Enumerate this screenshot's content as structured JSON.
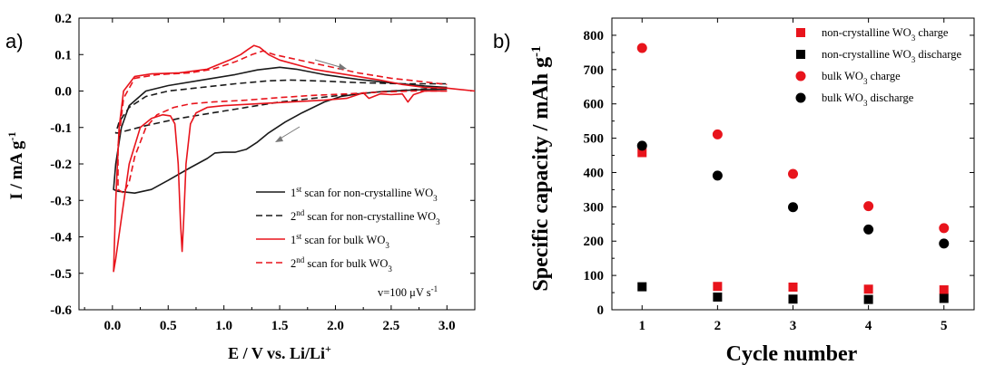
{
  "chart_data": [
    {
      "type": "line",
      "panel_label": "a)",
      "xlabel": "E / V vs. Li/Li",
      "xlabel_sup": "+",
      "ylabel": "I / mA g",
      "ylabel_sup": "-1",
      "xlim": [
        -0.3,
        3.25
      ],
      "ylim": [
        -0.6,
        0.2
      ],
      "xticks": [
        0.0,
        0.5,
        1.0,
        1.5,
        2.0,
        2.5,
        3.0
      ],
      "xtick_labels": [
        "0.0",
        "0.5",
        "1.0",
        "1.5",
        "2.0",
        "2.5",
        "3.0"
      ],
      "yticks": [
        -0.6,
        -0.5,
        -0.4,
        -0.3,
        -0.2,
        -0.1,
        0.0,
        0.1,
        0.2
      ],
      "ytick_labels": [
        "-0.6",
        "-0.5",
        "-0.4",
        "-0.3",
        "-0.2",
        "-0.1",
        "0.0",
        "0.1",
        "0.2"
      ],
      "annotation": "v=100 μV s",
      "annotation_sup": "-1",
      "legend_position": "bottom-right",
      "colors": {
        "noncrystalline": "#1a1a1a",
        "bulk": "#e8141c"
      },
      "series": [
        {
          "name": "1st scan for non-crystalline WO3",
          "legend": {
            "pre": "1",
            "sup": "st",
            "mid": " scan for non-crystalline WO",
            "sub": "3"
          },
          "color": "#1a1a1a",
          "dash": "solid",
          "points": [
            [
              3.0,
              0.005
            ],
            [
              2.7,
              0.003
            ],
            [
              2.4,
              -0.002
            ],
            [
              2.2,
              -0.008
            ],
            [
              2.05,
              -0.015
            ],
            [
              1.9,
              -0.03
            ],
            [
              1.7,
              -0.06
            ],
            [
              1.55,
              -0.085
            ],
            [
              1.4,
              -0.115
            ],
            [
              1.3,
              -0.14
            ],
            [
              1.2,
              -0.16
            ],
            [
              1.1,
              -0.168
            ],
            [
              1.0,
              -0.168
            ],
            [
              0.92,
              -0.17
            ],
            [
              0.85,
              -0.185
            ],
            [
              0.7,
              -0.21
            ],
            [
              0.5,
              -0.245
            ],
            [
              0.35,
              -0.27
            ],
            [
              0.2,
              -0.28
            ],
            [
              0.05,
              -0.275
            ],
            [
              0.01,
              -0.27
            ],
            [
              0.03,
              -0.2
            ],
            [
              0.08,
              -0.1
            ],
            [
              0.15,
              -0.04
            ],
            [
              0.3,
              0.0
            ],
            [
              0.5,
              0.015
            ],
            [
              0.8,
              0.03
            ],
            [
              1.1,
              0.045
            ],
            [
              1.3,
              0.058
            ],
            [
              1.5,
              0.065
            ],
            [
              1.65,
              0.06
            ],
            [
              1.9,
              0.045
            ],
            [
              2.2,
              0.032
            ],
            [
              2.5,
              0.022
            ],
            [
              2.8,
              0.014
            ],
            [
              3.0,
              0.01
            ]
          ]
        },
        {
          "name": "2nd scan for non-crystalline WO3",
          "legend": {
            "pre": "2",
            "sup": "nd",
            "mid": " scan for non-crystalline WO",
            "sub": "3"
          },
          "color": "#1a1a1a",
          "dash": "dashed",
          "points": [
            [
              3.0,
              0.01
            ],
            [
              2.7,
              0.004
            ],
            [
              2.4,
              -0.002
            ],
            [
              2.1,
              -0.01
            ],
            [
              1.8,
              -0.02
            ],
            [
              1.5,
              -0.03
            ],
            [
              1.2,
              -0.045
            ],
            [
              0.9,
              -0.06
            ],
            [
              0.6,
              -0.075
            ],
            [
              0.3,
              -0.095
            ],
            [
              0.05,
              -0.115
            ],
            [
              0.03,
              -0.115
            ],
            [
              0.06,
              -0.085
            ],
            [
              0.15,
              -0.045
            ],
            [
              0.3,
              -0.015
            ],
            [
              0.5,
              0.0
            ],
            [
              0.8,
              0.01
            ],
            [
              1.1,
              0.02
            ],
            [
              1.4,
              0.028
            ],
            [
              1.6,
              0.03
            ],
            [
              1.9,
              0.027
            ],
            [
              2.2,
              0.023
            ],
            [
              2.6,
              0.02
            ],
            [
              3.0,
              0.02
            ]
          ]
        },
        {
          "name": "1st scan for bulk WO3",
          "legend": {
            "pre": "1",
            "sup": "st",
            "mid": " scan for bulk WO",
            "sub": "3"
          },
          "color": "#e8141c",
          "dash": "solid",
          "points": [
            [
              3.0,
              0.0
            ],
            [
              2.8,
              0.0
            ],
            [
              2.7,
              -0.01
            ],
            [
              2.65,
              -0.03
            ],
            [
              2.6,
              -0.008
            ],
            [
              2.5,
              -0.01
            ],
            [
              2.4,
              -0.008
            ],
            [
              2.3,
              -0.02
            ],
            [
              2.25,
              -0.005
            ],
            [
              2.1,
              -0.02
            ],
            [
              1.9,
              -0.025
            ],
            [
              1.6,
              -0.03
            ],
            [
              1.3,
              -0.035
            ],
            [
              1.0,
              -0.04
            ],
            [
              0.85,
              -0.045
            ],
            [
              0.75,
              -0.06
            ],
            [
              0.7,
              -0.09
            ],
            [
              0.66,
              -0.2
            ],
            [
              0.64,
              -0.35
            ],
            [
              0.625,
              -0.44
            ],
            [
              0.61,
              -0.36
            ],
            [
              0.59,
              -0.2
            ],
            [
              0.56,
              -0.09
            ],
            [
              0.52,
              -0.068
            ],
            [
              0.45,
              -0.065
            ],
            [
              0.35,
              -0.075
            ],
            [
              0.25,
              -0.1
            ],
            [
              0.15,
              -0.2
            ],
            [
              0.08,
              -0.35
            ],
            [
              0.03,
              -0.46
            ],
            [
              0.01,
              -0.495
            ],
            [
              0.03,
              -0.3
            ],
            [
              0.06,
              -0.1
            ],
            [
              0.1,
              0.0
            ],
            [
              0.2,
              0.04
            ],
            [
              0.35,
              0.047
            ],
            [
              0.6,
              0.05
            ],
            [
              0.85,
              0.06
            ],
            [
              1.05,
              0.085
            ],
            [
              1.15,
              0.1
            ],
            [
              1.22,
              0.115
            ],
            [
              1.27,
              0.125
            ],
            [
              1.32,
              0.12
            ],
            [
              1.4,
              0.1
            ],
            [
              1.5,
              0.085
            ],
            [
              1.8,
              0.06
            ],
            [
              2.1,
              0.045
            ],
            [
              2.4,
              0.03
            ],
            [
              2.6,
              0.018
            ],
            [
              2.8,
              0.01
            ],
            [
              3.0,
              0.008
            ],
            [
              3.25,
              0.0
            ]
          ]
        },
        {
          "name": "2nd scan for bulk WO3",
          "legend": {
            "pre": "2",
            "sup": "nd",
            "mid": " scan for bulk WO",
            "sub": "3"
          },
          "color": "#e8141c",
          "dash": "dashed",
          "points": [
            [
              3.0,
              0.0
            ],
            [
              2.7,
              0.0
            ],
            [
              2.4,
              -0.003
            ],
            [
              2.1,
              -0.008
            ],
            [
              1.8,
              -0.012
            ],
            [
              1.5,
              -0.018
            ],
            [
              1.2,
              -0.025
            ],
            [
              0.9,
              -0.03
            ],
            [
              0.7,
              -0.035
            ],
            [
              0.55,
              -0.045
            ],
            [
              0.4,
              -0.065
            ],
            [
              0.3,
              -0.1
            ],
            [
              0.2,
              -0.18
            ],
            [
              0.15,
              -0.25
            ],
            [
              0.1,
              -0.28
            ],
            [
              0.05,
              -0.27
            ],
            [
              0.05,
              -0.15
            ],
            [
              0.1,
              -0.02
            ],
            [
              0.2,
              0.035
            ],
            [
              0.4,
              0.045
            ],
            [
              0.7,
              0.05
            ],
            [
              0.9,
              0.06
            ],
            [
              1.1,
              0.08
            ],
            [
              1.25,
              0.1
            ],
            [
              1.35,
              0.11
            ],
            [
              1.45,
              0.1
            ],
            [
              1.6,
              0.09
            ],
            [
              1.9,
              0.07
            ],
            [
              2.2,
              0.05
            ],
            [
              2.5,
              0.035
            ],
            [
              2.8,
              0.025
            ],
            [
              3.0,
              0.018
            ]
          ]
        }
      ]
    },
    {
      "type": "scatter",
      "panel_label": "b)",
      "xlabel": "Cycle number",
      "ylabel": "Specific capacity / mAh g",
      "ylabel_sup": "-1",
      "xlim": [
        0.6,
        5.4
      ],
      "ylim": [
        0,
        850
      ],
      "xticks": [
        1,
        2,
        3,
        4,
        5
      ],
      "xtick_labels": [
        "1",
        "2",
        "3",
        "4",
        "5"
      ],
      "yticks": [
        0,
        100,
        200,
        300,
        400,
        500,
        600,
        700,
        800
      ],
      "ytick_labels": [
        "0",
        "100",
        "200",
        "300",
        "400",
        "500",
        "600",
        "700",
        "800"
      ],
      "legend_position": "top-right",
      "series": [
        {
          "name": "non-crystalline WO3 charge",
          "legend": {
            "pre": "non-crystalline WO",
            "sub": "3",
            "post": " charge"
          },
          "marker": "square",
          "color": "#e8141c",
          "x": [
            1,
            2,
            3,
            4,
            5
          ],
          "y": [
            458,
            68,
            66,
            60,
            58
          ]
        },
        {
          "name": "non-crystalline WO3 discharge",
          "legend": {
            "pre": "non-crystalline WO",
            "sub": "3",
            "post": " discharge"
          },
          "marker": "square",
          "color": "#000000",
          "x": [
            1,
            2,
            3,
            4,
            5
          ],
          "y": [
            67,
            37,
            31,
            30,
            33
          ]
        },
        {
          "name": "bulk WO3 charge",
          "legend": {
            "pre": "bulk WO",
            "sub": "3",
            "post": " charge"
          },
          "marker": "circle",
          "color": "#e8141c",
          "x": [
            1,
            2,
            3,
            4,
            5
          ],
          "y": [
            763,
            511,
            396,
            302,
            238
          ]
        },
        {
          "name": "bulk WO3 discharge",
          "legend": {
            "pre": "bulk WO",
            "sub": "3",
            "post": " discharge"
          },
          "marker": "circle",
          "color": "#000000",
          "x": [
            1,
            2,
            3,
            4,
            5
          ],
          "y": [
            478,
            391,
            299,
            234,
            193
          ]
        }
      ]
    }
  ]
}
